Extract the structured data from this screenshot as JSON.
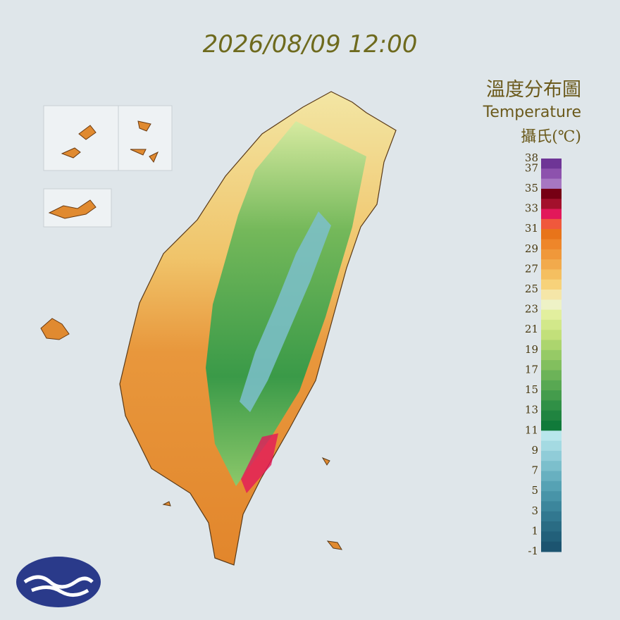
{
  "header": {
    "timestamp": "2026/08/09 12:00"
  },
  "legend": {
    "title_zh": "溫度分布圖",
    "title_en": "Temperature",
    "unit": "攝氏(℃)",
    "labels": [
      "38",
      "37",
      "35",
      "33",
      "31",
      "29",
      "27",
      "25",
      "23",
      "21",
      "19",
      "17",
      "15",
      "13",
      "11",
      "9",
      "7",
      "5",
      "3",
      "1",
      "-1"
    ],
    "bands": [
      "#6e3596",
      "#8d52ad",
      "#a777c2",
      "#760014",
      "#a3102c",
      "#e2185a",
      "#f0583c",
      "#e8741a",
      "#ee862a",
      "#f0983a",
      "#f2aa4c",
      "#f5bf60",
      "#f7d27a",
      "#f5e6a8",
      "#eef2c6",
      "#e2ef9e",
      "#d2e88a",
      "#c2e07a",
      "#acd56e",
      "#96ca66",
      "#82bf5e",
      "#6cb358",
      "#58a852",
      "#449c4c",
      "#309046",
      "#208440",
      "#107a3a",
      "#b8e6ec",
      "#a4dae2",
      "#90ccd8",
      "#7cbfcc",
      "#68b0c0",
      "#56a2b4",
      "#4894a8",
      "#3c869c",
      "#327890",
      "#2a6c84",
      "#22607a",
      "#1c5470"
    ]
  }
}
